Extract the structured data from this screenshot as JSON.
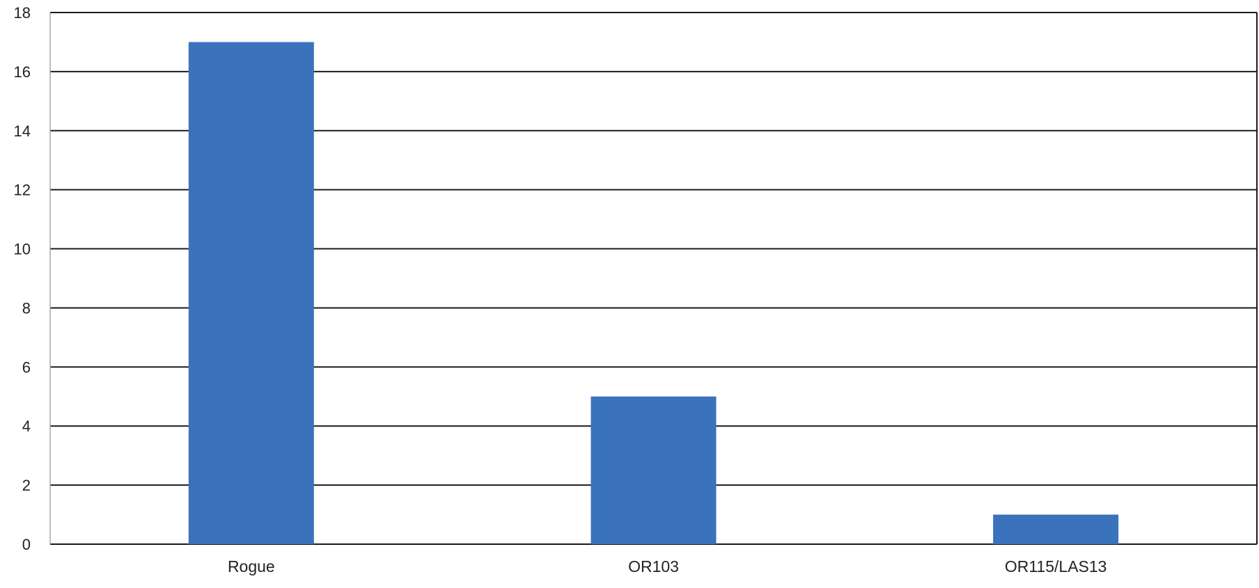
{
  "chart_data": {
    "type": "bar",
    "categories": [
      "Rogue",
      "OR103",
      "OR115/LAS13"
    ],
    "values": [
      17,
      5,
      1
    ],
    "title": "",
    "xlabel": "",
    "ylabel": "",
    "ylim": [
      0,
      18
    ],
    "yticks": [
      0,
      2,
      4,
      6,
      8,
      10,
      12,
      14,
      16,
      18
    ],
    "grid": true,
    "legend": "none",
    "bar_color": "#3a73bc",
    "grid_color": "#1a1a1a"
  }
}
